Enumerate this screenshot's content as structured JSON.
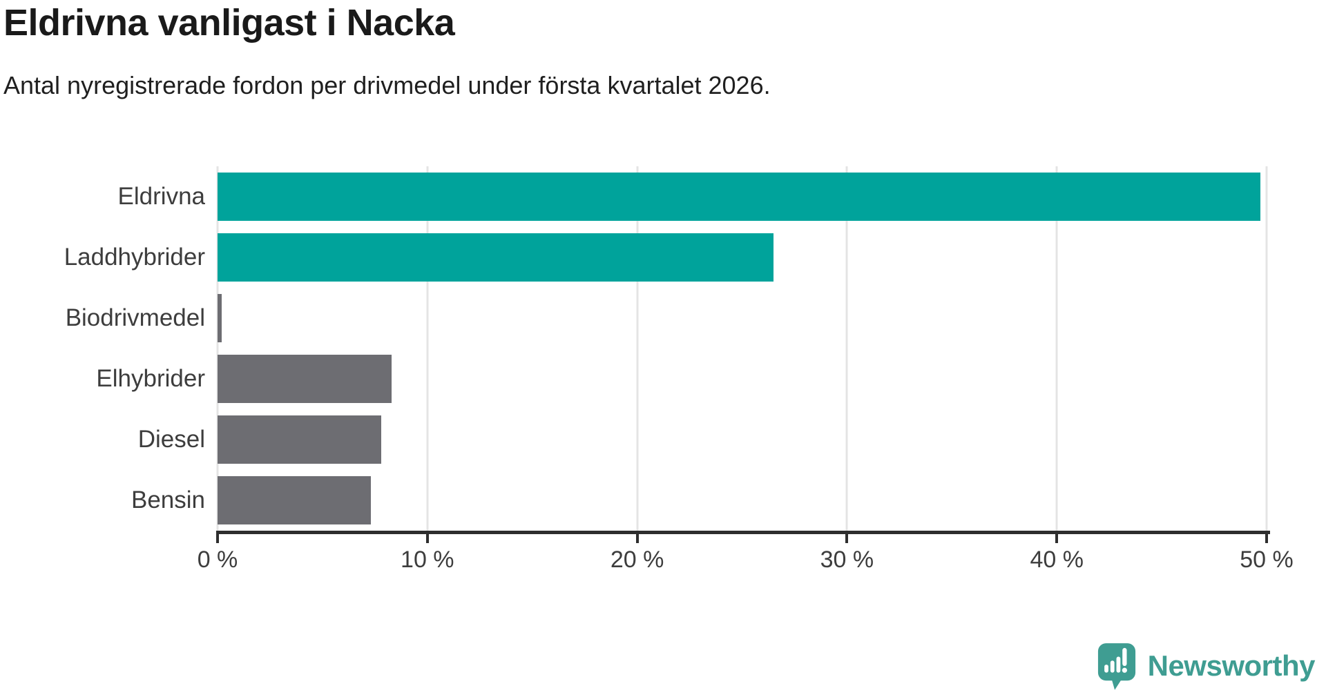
{
  "header": {
    "title": "Eldrivna vanligast i Nacka",
    "subtitle": "Antal nyregistrerade fordon per drivmedel under första kvartalet 2026."
  },
  "chart_data": {
    "type": "bar",
    "orientation": "horizontal",
    "title": "Eldrivna vanligast i Nacka",
    "subtitle": "Antal nyregistrerade fordon per drivmedel under första kvartalet 2026.",
    "categories": [
      "Eldrivna",
      "Laddhybrider",
      "Biodrivmedel",
      "Elhybrider",
      "Diesel",
      "Bensin"
    ],
    "values": [
      49.7,
      26.5,
      0.2,
      8.3,
      7.8,
      7.3
    ],
    "unit": "%",
    "bar_colors": [
      "#00a39b",
      "#00a39b",
      "#6d6d72",
      "#6d6d72",
      "#6d6d72",
      "#6d6d72"
    ],
    "xlim": [
      0,
      50
    ],
    "xticks": [
      0,
      10,
      20,
      30,
      40,
      50
    ],
    "xtick_labels": [
      "0 %",
      "10 %",
      "20 %",
      "30 %",
      "40 %",
      "50 %"
    ],
    "grid": "vertical-gridlines",
    "legend": "none",
    "xlabel": "",
    "ylabel": ""
  },
  "colors": {
    "accent_teal": "#00a39b",
    "neutral_gray": "#6d6d72",
    "gridline": "#e4e4e4",
    "axis": "#2e2e2e",
    "title_text": "#1a1a1a",
    "label_text": "#3d3d3d",
    "logo_teal": "#3f9d92",
    "background": "#ffffff"
  },
  "footer": {
    "brand": "Newsworthy"
  }
}
